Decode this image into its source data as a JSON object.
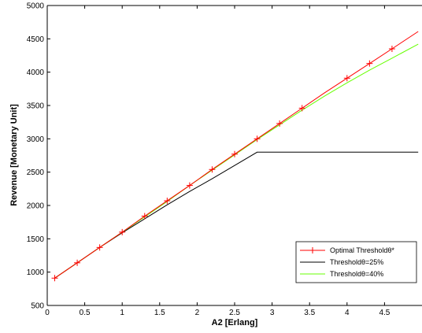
{
  "chart_data": {
    "type": "line",
    "title": "",
    "xlabel": "A2 [Erlang]",
    "ylabel": "Revenue [Monetary Unit]",
    "xlim": [
      0,
      5
    ],
    "ylim": [
      500,
      5000
    ],
    "xticks": [
      0,
      0.5,
      1,
      1.5,
      2,
      2.5,
      3,
      3.5,
      4,
      4.5
    ],
    "xtick_labels": [
      "0",
      "0.5",
      "1",
      "1.5",
      "2",
      "2.5",
      "3",
      "3.5",
      "4",
      "4.5"
    ],
    "yticks": [
      500,
      1000,
      1500,
      2000,
      2500,
      3000,
      3500,
      4000,
      4500,
      5000
    ],
    "ytick_labels": [
      "500",
      "1000",
      "1500",
      "2000",
      "2500",
      "3000",
      "3500",
      "4000",
      "4500",
      "5000"
    ],
    "grid": false,
    "legend_position": "bottom-right",
    "series": [
      {
        "name": "Optimal Thresholdθ*",
        "color": "#ff0000",
        "marker": "plus",
        "x": [
          0.1,
          0.4,
          0.7,
          1.0,
          1.3,
          1.6,
          1.9,
          2.2,
          2.5,
          2.8,
          3.1,
          3.4,
          3.7,
          4.0,
          4.3,
          4.6,
          4.95
        ],
        "y": [
          910,
          1140,
          1370,
          1600,
          1840,
          2070,
          2300,
          2540,
          2770,
          3000,
          3230,
          3460,
          3690,
          3910,
          4130,
          4350,
          4610
        ],
        "marker_x": [
          0.1,
          0.4,
          0.7,
          1.0,
          1.3,
          1.6,
          1.9,
          2.2,
          2.5,
          2.8,
          3.1,
          3.4,
          4.0,
          4.3,
          4.6
        ],
        "marker_y": [
          910,
          1140,
          1370,
          1600,
          1840,
          2070,
          2300,
          2540,
          2770,
          3000,
          3230,
          3460,
          3910,
          4130,
          4350
        ]
      },
      {
        "name": "Thresholdθ=25%",
        "color": "#000000",
        "x": [
          0.1,
          0.4,
          0.7,
          1.0,
          1.3,
          1.6,
          1.9,
          2.2,
          2.5,
          2.8,
          3.2,
          3.6,
          4.0,
          4.4,
          4.95
        ],
        "y": [
          910,
          1140,
          1370,
          1590,
          1800,
          2010,
          2210,
          2400,
          2600,
          2800,
          2800,
          2800,
          2800,
          2800,
          2800
        ]
      },
      {
        "name": "Thresholdθ=40%",
        "color": "#66ff00",
        "x": [
          0.1,
          0.4,
          0.7,
          1.0,
          1.3,
          1.6,
          1.9,
          2.2,
          2.5,
          2.8,
          3.1,
          3.4,
          3.7,
          4.0,
          4.3,
          4.6,
          4.95
        ],
        "y": [
          910,
          1140,
          1370,
          1600,
          1830,
          2060,
          2300,
          2530,
          2760,
          2990,
          3210,
          3430,
          3640,
          3840,
          4030,
          4210,
          4420
        ]
      }
    ]
  }
}
